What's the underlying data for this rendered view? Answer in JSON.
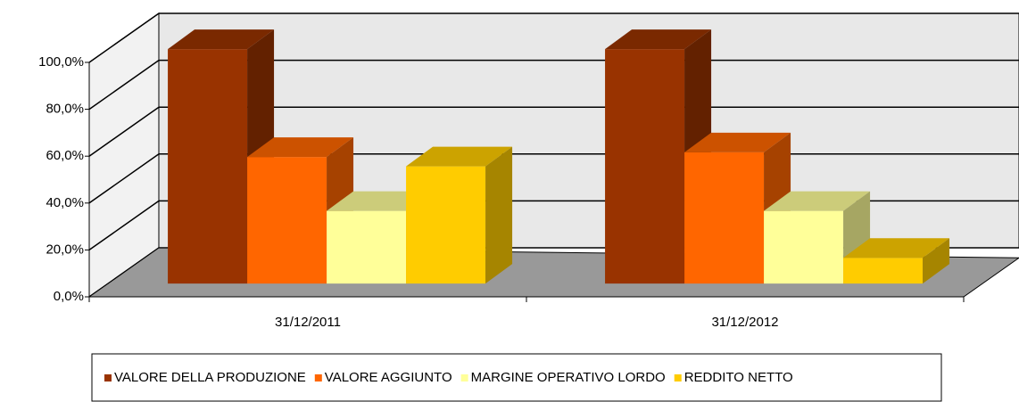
{
  "chart_data": {
    "type": "bar3d",
    "categories": [
      "31/12/2011",
      "31/12/2012"
    ],
    "series": [
      {
        "name": "VALORE DELLA PRODUZIONE",
        "color": "#993300",
        "values": [
          100,
          100
        ]
      },
      {
        "name": "VALORE AGGIUNTO",
        "color": "#FF6600",
        "values": [
          54,
          56
        ]
      },
      {
        "name": "MARGINE OPERATIVO LORDO",
        "color": "#FFFF99",
        "values": [
          31,
          31
        ]
      },
      {
        "name": "REDDITO NETTO",
        "color": "#FFCC00",
        "values": [
          50,
          11
        ]
      }
    ],
    "ylim": [
      0,
      100
    ],
    "yticks": [
      {
        "value": 0,
        "label": "0,0%"
      },
      {
        "value": 20,
        "label": "20,0%"
      },
      {
        "value": 40,
        "label": "40,0%"
      },
      {
        "value": 60,
        "label": "60,0%"
      },
      {
        "value": 80,
        "label": "80,0%"
      },
      {
        "value": 100,
        "label": "100,0%"
      }
    ],
    "grid": true,
    "legend": "bottom"
  }
}
